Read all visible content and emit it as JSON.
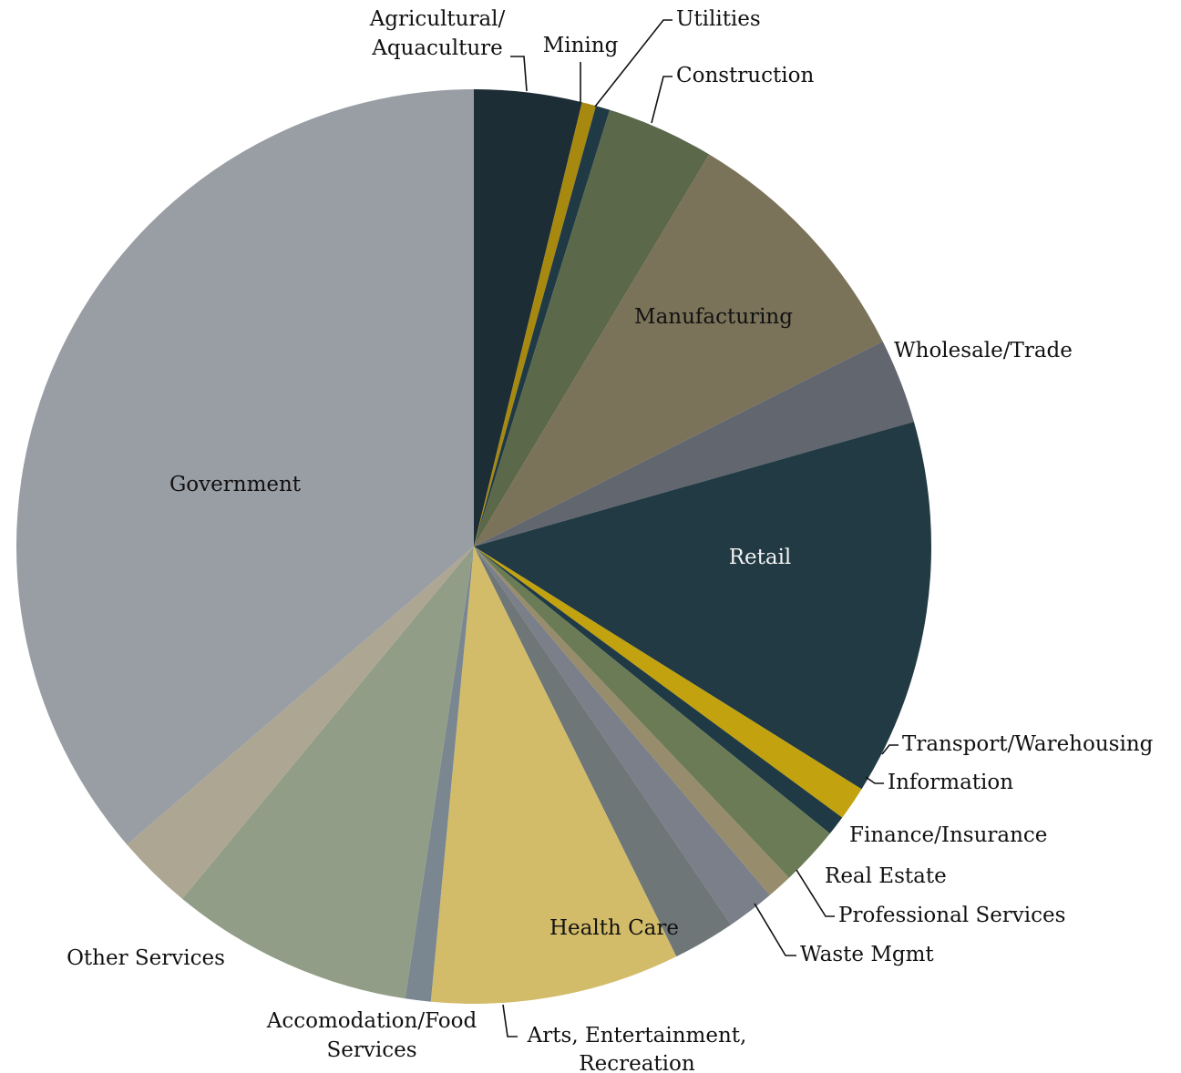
{
  "chart_data": {
    "type": "pie",
    "title": "",
    "slices": [
      {
        "label": "Agricultural/ Aquaculture",
        "value": 3.8,
        "color": "#1c2d36"
      },
      {
        "label": "Mining",
        "value": 0.5,
        "color": "#a8890f"
      },
      {
        "label": "Utilities",
        "value": 0.5,
        "color": "#1f3a45"
      },
      {
        "label": "Construction",
        "value": 3.8,
        "color": "#5b684a"
      },
      {
        "label": "Manufacturing",
        "value": 9.0,
        "color": "#7a7259"
      },
      {
        "label": "Wholesale/Trade",
        "value": 3.0,
        "color": "#62666f"
      },
      {
        "label": "Retail",
        "value": 13.3,
        "color": "#223a43"
      },
      {
        "label": "Transport/Warehousing",
        "value": 1.2,
        "color": "#c2a20f"
      },
      {
        "label": "Information",
        "value": 0.7,
        "color": "#1f3a45"
      },
      {
        "label": "Finance/Insurance",
        "value": 2.1,
        "color": "#6b7b56"
      },
      {
        "label": "Real Estate",
        "value": 0.9,
        "color": "#978c6c"
      },
      {
        "label": "Professional Services",
        "value": 1.7,
        "color": "#7a7f89"
      },
      {
        "label": "Waste Mgmt",
        "value": 2.2,
        "color": "#6e7677"
      },
      {
        "label": "Health Care",
        "value": 8.8,
        "color": "#d3bc69"
      },
      {
        "label": "Arts, Entertainment, Recreation",
        "value": 0.9,
        "color": "#7a8790"
      },
      {
        "label": "Accomodation/Food Services",
        "value": 8.6,
        "color": "#919d86"
      },
      {
        "label": "Other Services",
        "value": 2.7,
        "color": "#ada692"
      },
      {
        "label": "Government",
        "value": 36.3,
        "color": "#999da4"
      }
    ],
    "legend": "none",
    "label_placement": "inside for large slices, outside with leader lines for small slices"
  }
}
